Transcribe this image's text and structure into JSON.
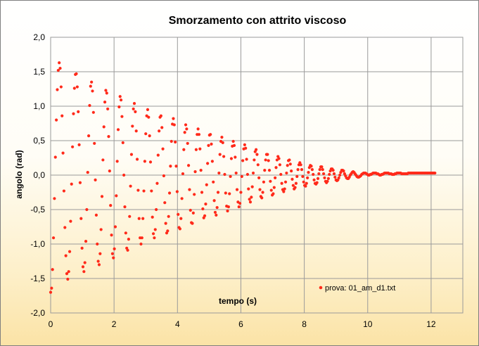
{
  "chart_data": {
    "type": "scatter",
    "title": "Smorzamento  con attrito viscoso",
    "xlabel": "tempo (s)",
    "ylabel": "angolo (rad)",
    "xlim": [
      0,
      13
    ],
    "ylim": [
      -2.0,
      2.0
    ],
    "x_ticks": [
      0,
      2,
      4,
      6,
      8,
      10,
      12
    ],
    "x_tick_labels": [
      "0",
      "2",
      "4",
      "6",
      "8",
      "10",
      "12"
    ],
    "y_ticks": [
      -2.0,
      -1.5,
      -1.0,
      -0.5,
      0.0,
      0.5,
      1.0,
      1.5,
      2.0
    ],
    "y_tick_labels": [
      "-2,0",
      "-1,5",
      "-1,0",
      "-0,5",
      "0,0",
      "0,5",
      "1,0",
      "1,5",
      "2,0"
    ],
    "grid": true,
    "legend_position": "bottom-right",
    "series": [
      {
        "name": "prova: 01_am_d1.txt",
        "color": "#ff2a1a",
        "sample_interval": 0.03,
        "x_start": 0.0,
        "x_end": 12.6,
        "y": [
          -1.7,
          -1.64,
          -1.37,
          -0.91,
          -0.34,
          0.26,
          0.8,
          1.24,
          1.52,
          1.63,
          1.55,
          1.28,
          0.86,
          0.32,
          -0.23,
          -0.76,
          -1.17,
          -1.43,
          -1.51,
          -1.4,
          -1.11,
          -0.67,
          -0.13,
          0.41,
          0.89,
          1.26,
          1.46,
          1.47,
          1.28,
          0.92,
          0.44,
          -0.11,
          -0.63,
          -1.06,
          -1.33,
          -1.4,
          -1.27,
          -0.96,
          -0.5,
          0.04,
          0.57,
          1.01,
          1.29,
          1.35,
          1.22,
          0.91,
          0.46,
          -0.07,
          -0.58,
          -1.0,
          -1.25,
          -1.3,
          -1.14,
          -0.79,
          -0.31,
          0.22,
          0.7,
          1.06,
          1.23,
          1.19,
          0.96,
          0.56,
          0.06,
          -0.44,
          -0.87,
          -1.14,
          -1.2,
          -1.07,
          -0.75,
          -0.3,
          0.2,
          0.66,
          0.99,
          1.14,
          1.09,
          0.85,
          0.47,
          0.0,
          -0.46,
          -0.84,
          -1.06,
          -1.09,
          -0.93,
          -0.6,
          -0.16,
          0.3,
          0.71,
          0.96,
          1.04,
          0.92,
          0.64,
          0.23,
          -0.22,
          -0.63,
          -0.91,
          -1.0,
          -0.91,
          -0.63,
          -0.23,
          0.2,
          0.6,
          0.86,
          0.95,
          0.84,
          0.57,
          0.19,
          -0.23,
          -0.61,
          -0.85,
          -0.91,
          -0.79,
          -0.5,
          -0.12,
          0.29,
          0.64,
          0.84,
          0.86,
          0.69,
          0.38,
          -0.01,
          -0.4,
          -0.7,
          -0.84,
          -0.81,
          -0.6,
          -0.26,
          0.13,
          0.49,
          0.74,
          0.82,
          0.73,
          0.48,
          0.13,
          -0.24,
          -0.57,
          -0.76,
          -0.78,
          -0.63,
          -0.34,
          0.02,
          0.37,
          0.62,
          0.73,
          0.67,
          0.46,
          0.14,
          -0.21,
          -0.51,
          -0.69,
          -0.7,
          -0.55,
          -0.28,
          0.05,
          0.37,
          0.59,
          0.67,
          0.59,
          0.38,
          0.07,
          -0.25,
          -0.49,
          -0.62,
          -0.59,
          -0.42,
          -0.14,
          0.17,
          0.43,
          0.58,
          0.59,
          0.45,
          0.2,
          -0.1,
          -0.37,
          -0.54,
          -0.58,
          -0.47,
          -0.25,
          0.03,
          0.3,
          0.49,
          0.55,
          0.47,
          0.27,
          0.01,
          -0.26,
          -0.45,
          -0.52,
          -0.46,
          -0.27,
          -0.02,
          0.24,
          0.42,
          0.49,
          0.43,
          0.26,
          0.03,
          -0.21,
          -0.39,
          -0.46,
          -0.41,
          -0.25,
          -0.02,
          0.21,
          0.38,
          0.44,
          0.39,
          0.23,
          0.01,
          -0.2,
          -0.35,
          -0.39,
          -0.32,
          -0.17,
          0.03,
          0.22,
          0.34,
          0.37,
          0.3,
          0.15,
          -0.04,
          -0.21,
          -0.31,
          -0.33,
          -0.25,
          -0.1,
          0.07,
          0.22,
          0.3,
          0.3,
          0.21,
          0.07,
          -0.09,
          -0.22,
          -0.29,
          -0.27,
          -0.18,
          -0.04,
          0.11,
          0.22,
          0.27,
          0.24,
          0.15,
          0.01,
          -0.12,
          -0.21,
          -0.24,
          -0.2,
          -0.1,
          0.03,
          0.14,
          0.21,
          0.22,
          0.16,
          0.06,
          -0.06,
          -0.15,
          -0.2,
          -0.18,
          -0.12,
          -0.02,
          0.08,
          0.15,
          0.18,
          0.15,
          0.08,
          -0.02,
          -0.1,
          -0.15,
          -0.16,
          -0.12,
          -0.04,
          0.04,
          0.11,
          0.14,
          0.13,
          0.08,
          0.01,
          -0.07,
          -0.12,
          -0.13,
          -0.11,
          -0.05,
          0.02,
          0.08,
          0.12,
          0.12,
          0.08,
          0.02,
          -0.04,
          -0.09,
          -0.11,
          -0.09,
          -0.05,
          0.01,
          0.06,
          0.09,
          0.09,
          0.07,
          0.02,
          -0.03,
          -0.07,
          -0.08,
          -0.07,
          -0.04,
          0.0,
          0.04,
          0.07,
          0.07,
          0.06,
          0.02,
          -0.01,
          -0.04,
          -0.05,
          -0.05,
          -0.03,
          0.0,
          0.02,
          0.04,
          0.05,
          0.04,
          0.02,
          0.0,
          -0.02,
          -0.03,
          -0.03,
          -0.02,
          -0.01,
          0.01,
          0.02,
          0.03,
          0.03,
          0.03,
          0.02,
          0.01,
          0.0,
          0.0,
          0.01,
          0.01,
          0.02,
          0.03,
          0.03,
          0.03,
          0.03,
          0.02,
          0.02,
          0.01,
          0.0,
          0.0,
          0.01,
          0.01,
          0.02,
          0.03,
          0.03,
          0.03,
          0.03,
          0.03,
          0.02,
          0.02,
          0.02,
          0.01,
          0.01,
          0.01,
          0.02,
          0.02,
          0.03,
          0.03,
          0.03,
          0.03,
          0.03,
          0.02,
          0.02,
          0.02,
          0.02,
          0.02,
          0.02,
          0.02,
          0.03,
          0.03,
          0.03,
          0.03,
          0.03,
          0.03,
          0.03,
          0.03,
          0.03,
          0.03,
          0.03,
          0.03,
          0.03,
          0.03,
          0.03,
          0.03,
          0.03,
          0.03,
          0.03,
          0.03,
          0.03,
          0.03,
          0.03,
          0.03,
          0.03,
          0.03,
          0.03,
          0.03,
          0.03
        ]
      }
    ]
  }
}
